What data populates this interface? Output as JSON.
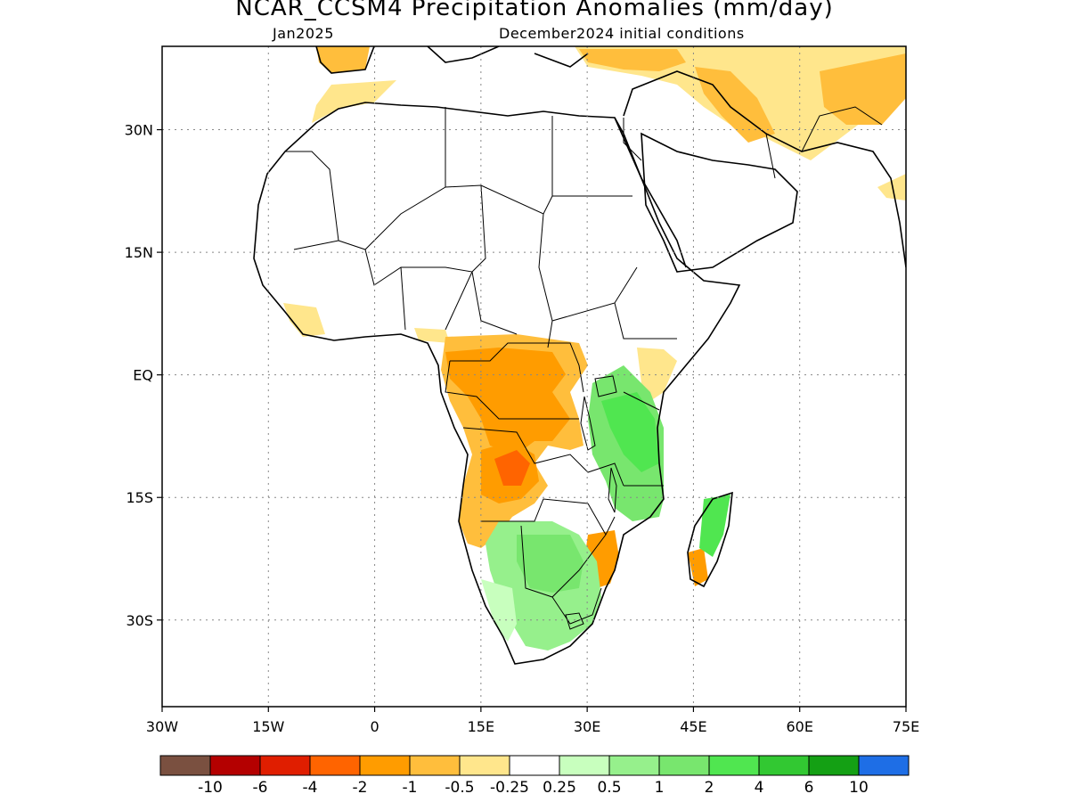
{
  "title": "NCAR_CCSM4 Precipitation Anomalies (mm/day)",
  "valid_month": "Jan2025",
  "init_conditions": "December2024 initial conditions",
  "latitude_labels": [
    "30N",
    "15N",
    "EQ",
    "15S",
    "30S"
  ],
  "longitude_labels": [
    "30W",
    "15W",
    "0",
    "15E",
    "30E",
    "45E",
    "60E",
    "75E"
  ],
  "colorbar": {
    "labels": [
      "-10",
      "-6",
      "-4",
      "-2",
      "-1",
      "-0.5",
      "-0.25",
      "0.25",
      "0.5",
      "1",
      "2",
      "4",
      "6",
      "10"
    ],
    "colors": [
      "#7a5040",
      "#b40000",
      "#e01e00",
      "#ff6400",
      "#ff9c00",
      "#ffbe3c",
      "#ffe68c",
      "#ffffff",
      "#c8ffbe",
      "#96f08c",
      "#78e66e",
      "#50e650",
      "#32c832",
      "#14a014",
      "#1e6ee6"
    ]
  }
}
